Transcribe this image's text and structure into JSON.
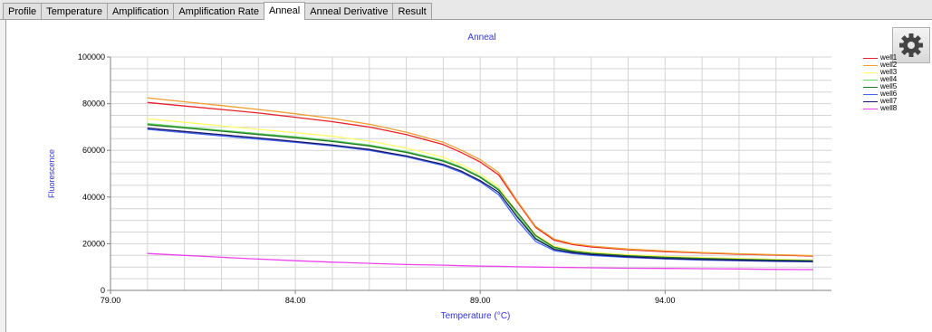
{
  "tabs": [
    {
      "label": "Profile",
      "active": false
    },
    {
      "label": "Temperature",
      "active": false
    },
    {
      "label": "Amplification",
      "active": false
    },
    {
      "label": "Amplification Rate",
      "active": false
    },
    {
      "label": "Anneal",
      "active": true
    },
    {
      "label": "Anneal Derivative",
      "active": false
    },
    {
      "label": "Result",
      "active": false
    }
  ],
  "settings_button": {
    "icon": "gear-icon"
  },
  "chart_data": {
    "type": "line",
    "title": "Anneal",
    "xlabel": "Temperature (°C)",
    "ylabel": "Fluorescence",
    "xlim": [
      79,
      98.5
    ],
    "ylim": [
      0,
      100000
    ],
    "xticks": [
      79,
      84,
      89,
      94
    ],
    "xtick_labels": [
      "79.00",
      "84.00",
      "89.00",
      "94.00"
    ],
    "yticks": [
      0,
      20000,
      40000,
      60000,
      80000,
      100000
    ],
    "grid": true,
    "legend_position": "top-right",
    "x": [
      80,
      81,
      82,
      83,
      84,
      85,
      86,
      87,
      88,
      88.5,
      89,
      89.5,
      90,
      90.5,
      91,
      91.5,
      92,
      93,
      94,
      95,
      96,
      97,
      98
    ],
    "series": [
      {
        "name": "well1",
        "color": "#e8212b",
        "values": [
          80500,
          79000,
          77500,
          76000,
          74200,
          72300,
          70000,
          66800,
          62500,
          59000,
          55000,
          49500,
          38000,
          27000,
          21500,
          19600,
          18600,
          17400,
          16600,
          16000,
          15500,
          15100,
          14700
        ]
      },
      {
        "name": "well2",
        "color": "#f0a030",
        "values": [
          82500,
          80800,
          79200,
          77500,
          75700,
          73700,
          71200,
          67800,
          63500,
          60000,
          56000,
          50500,
          38500,
          27500,
          22000,
          20000,
          19000,
          17700,
          16900,
          16200,
          15700,
          15300,
          14900
        ]
      },
      {
        "name": "well3",
        "color": "#ffff66",
        "values": [
          73500,
          72000,
          70500,
          69000,
          67600,
          66000,
          64000,
          61000,
          57000,
          53800,
          49800,
          44500,
          33500,
          24000,
          19000,
          17200,
          16300,
          15300,
          14600,
          14100,
          13700,
          13300,
          13000
        ]
      },
      {
        "name": "well4",
        "color": "#66d966",
        "values": [
          71500,
          70000,
          68600,
          67200,
          65800,
          64200,
          62300,
          59500,
          55800,
          52800,
          48800,
          43500,
          32500,
          22500,
          18000,
          16500,
          15600,
          14600,
          14000,
          13500,
          13100,
          12800,
          12500
        ]
      },
      {
        "name": "well5",
        "color": "#227722",
        "values": [
          71000,
          69600,
          68200,
          66800,
          65400,
          63800,
          61900,
          59100,
          55400,
          52400,
          48400,
          43000,
          33500,
          23500,
          18500,
          16800,
          15900,
          14900,
          14200,
          13700,
          13300,
          13000,
          12700
        ]
      },
      {
        "name": "well6",
        "color": "#4466ee",
        "values": [
          69000,
          67600,
          66200,
          64800,
          63400,
          61900,
          60000,
          57200,
          53500,
          50500,
          46500,
          41000,
          30000,
          21000,
          17000,
          15800,
          15000,
          14100,
          13500,
          13000,
          12700,
          12400,
          12200
        ]
      },
      {
        "name": "well7",
        "color": "#14146e",
        "values": [
          69500,
          68100,
          66700,
          65300,
          63800,
          62300,
          60400,
          57600,
          54000,
          51000,
          47000,
          42000,
          31500,
          22000,
          17600,
          16200,
          15400,
          14400,
          13700,
          13200,
          12900,
          12600,
          12400
        ]
      },
      {
        "name": "well8",
        "color": "#ee44ee",
        "values": [
          15800,
          15000,
          14200,
          13400,
          12700,
          12100,
          11600,
          11100,
          10800,
          10600,
          10400,
          10300,
          10100,
          10000,
          9900,
          9800,
          9700,
          9500,
          9400,
          9300,
          9200,
          9000,
          8900
        ]
      }
    ]
  }
}
